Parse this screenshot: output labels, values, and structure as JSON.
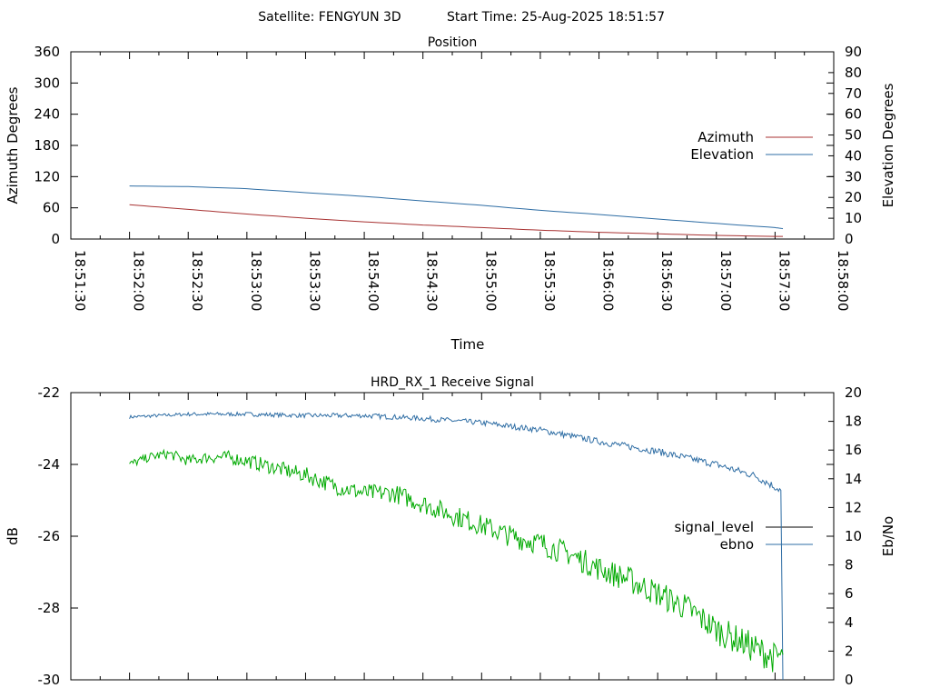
{
  "header": {
    "satellite_label": "Satellite: FENGYUN 3D",
    "start_time_label": "Start Time: 25-Aug-2025 18:51:57"
  },
  "colors": {
    "azimuth": "#a83232",
    "elevation": "#2e6da4",
    "signal_level": "#000000",
    "ebno": "#2e6da4",
    "snr_trace": "#00aa00",
    "axes": "#000000"
  },
  "chart_data": [
    {
      "type": "line",
      "title": "Position",
      "xlabel": "Time",
      "ylabel_left": "Azimuth Degrees",
      "ylabel_right": "Elevation Degrees",
      "x_ticks": [
        "18:51:30",
        "18:52:00",
        "18:52:30",
        "18:53:00",
        "18:53:30",
        "18:54:00",
        "18:54:30",
        "18:55:00",
        "18:55:30",
        "18:56:00",
        "18:56:30",
        "18:57:00",
        "18:57:30",
        "18:58:00"
      ],
      "xlim": [
        "18:51:30",
        "18:58:00"
      ],
      "y_left_ticks": [
        "0",
        "60",
        "120",
        "180",
        "240",
        "300",
        "360"
      ],
      "ylim_left": [
        0,
        360
      ],
      "y_right_ticks": [
        "0",
        "10",
        "20",
        "30",
        "40",
        "50",
        "60",
        "70",
        "80",
        "90"
      ],
      "ylim_right": [
        0,
        90
      ],
      "legend_position": "right",
      "grid": false,
      "series": [
        {
          "name": "Azimuth",
          "axis": "left",
          "x": [
            "18:52:00",
            "18:52:30",
            "18:53:00",
            "18:53:30",
            "18:54:00",
            "18:54:30",
            "18:55:00",
            "18:55:30",
            "18:56:00",
            "18:56:30",
            "18:57:00",
            "18:57:30",
            "18:57:34"
          ],
          "values": [
            66,
            57,
            48,
            40,
            33,
            27,
            22,
            17,
            13,
            10,
            7,
            5,
            5
          ]
        },
        {
          "name": "Elevation",
          "axis": "right",
          "x": [
            "18:52:00",
            "18:52:30",
            "18:53:00",
            "18:53:30",
            "18:54:00",
            "18:54:30",
            "18:55:00",
            "18:55:30",
            "18:56:00",
            "18:56:30",
            "18:57:00",
            "18:57:30",
            "18:57:34"
          ],
          "values": [
            25.5,
            25.2,
            24.2,
            22.3,
            20.5,
            18.3,
            16.2,
            13.8,
            11.8,
            9.6,
            7.5,
            5.5,
            5.0
          ]
        }
      ]
    },
    {
      "type": "line",
      "title": "HRD_RX_1 Receive Signal",
      "ylabel_left": "dB",
      "ylabel_right": "Eb/No",
      "y_left_ticks": [
        "-30",
        "-28",
        "-26",
        "-24",
        "-22"
      ],
      "ylim_left": [
        -30,
        -22
      ],
      "y_right_ticks": [
        "0",
        "2",
        "4",
        "6",
        "8",
        "10",
        "12",
        "14",
        "16",
        "18",
        "20"
      ],
      "ylim_right": [
        0,
        20
      ],
      "xlim": [
        "18:51:30",
        "18:58:00"
      ],
      "legend_position": "right",
      "grid": false,
      "series": [
        {
          "name": "signal_level",
          "axis": "left",
          "x": [],
          "values": []
        },
        {
          "name": "ebno",
          "axis": "right",
          "x": [
            "18:52:00",
            "18:52:30",
            "18:53:00",
            "18:53:30",
            "18:54:00",
            "18:54:30",
            "18:55:00",
            "18:55:30",
            "18:56:00",
            "18:56:30",
            "18:57:00",
            "18:57:20",
            "18:57:33",
            "18:57:34"
          ],
          "values": [
            18.3,
            18.5,
            18.5,
            18.4,
            18.4,
            18.2,
            17.9,
            17.4,
            16.6,
            15.9,
            15.0,
            14.2,
            13.2,
            0.0
          ]
        },
        {
          "axis": "left",
          "x": [
            "18:52:00",
            "18:52:10",
            "18:52:20",
            "18:52:30",
            "18:52:40",
            "18:52:50",
            "18:53:00",
            "18:53:15",
            "18:53:30",
            "18:53:45",
            "18:54:00",
            "18:54:15",
            "18:54:30",
            "18:54:45",
            "18:55:00",
            "18:55:15",
            "18:55:30",
            "18:55:45",
            "18:56:00",
            "18:56:15",
            "18:56:30",
            "18:56:45",
            "18:57:00",
            "18:57:15",
            "18:57:30",
            "18:57:34"
          ],
          "values": [
            -24.0,
            -23.8,
            -23.7,
            -23.9,
            -23.8,
            -23.8,
            -23.9,
            -24.1,
            -24.3,
            -24.6,
            -24.8,
            -24.8,
            -25.1,
            -25.4,
            -25.7,
            -26.0,
            -26.2,
            -26.5,
            -26.9,
            -27.2,
            -27.6,
            -28.0,
            -28.6,
            -29.0,
            -29.4,
            -29.3
          ]
        }
      ]
    }
  ]
}
